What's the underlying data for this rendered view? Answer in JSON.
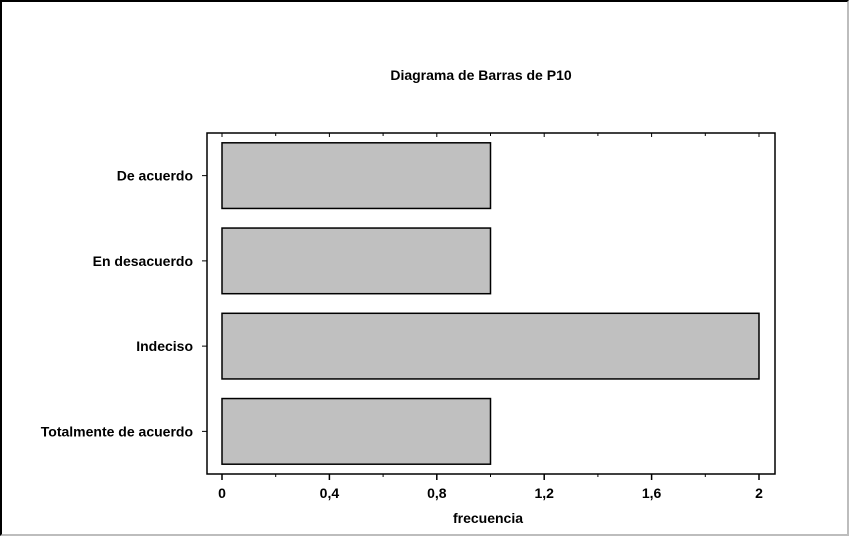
{
  "chart_data": {
    "type": "bar",
    "orientation": "horizontal",
    "title": "Diagrama de Barras de P10",
    "xlabel": "frecuencia",
    "ylabel": "",
    "categories": [
      "De acuerdo",
      "En desacuerdo",
      "Indeciso",
      "Totalmente de acuerdo"
    ],
    "values": [
      1,
      1,
      2,
      1
    ],
    "xlim": [
      0,
      2
    ],
    "x_ticks": [
      "0",
      "0,4",
      "0,8",
      "1,2",
      "1,6",
      "2"
    ],
    "grid": false,
    "legend": "none",
    "bar_color": "#c0c0c0",
    "bar_edge_color": "#000000"
  }
}
